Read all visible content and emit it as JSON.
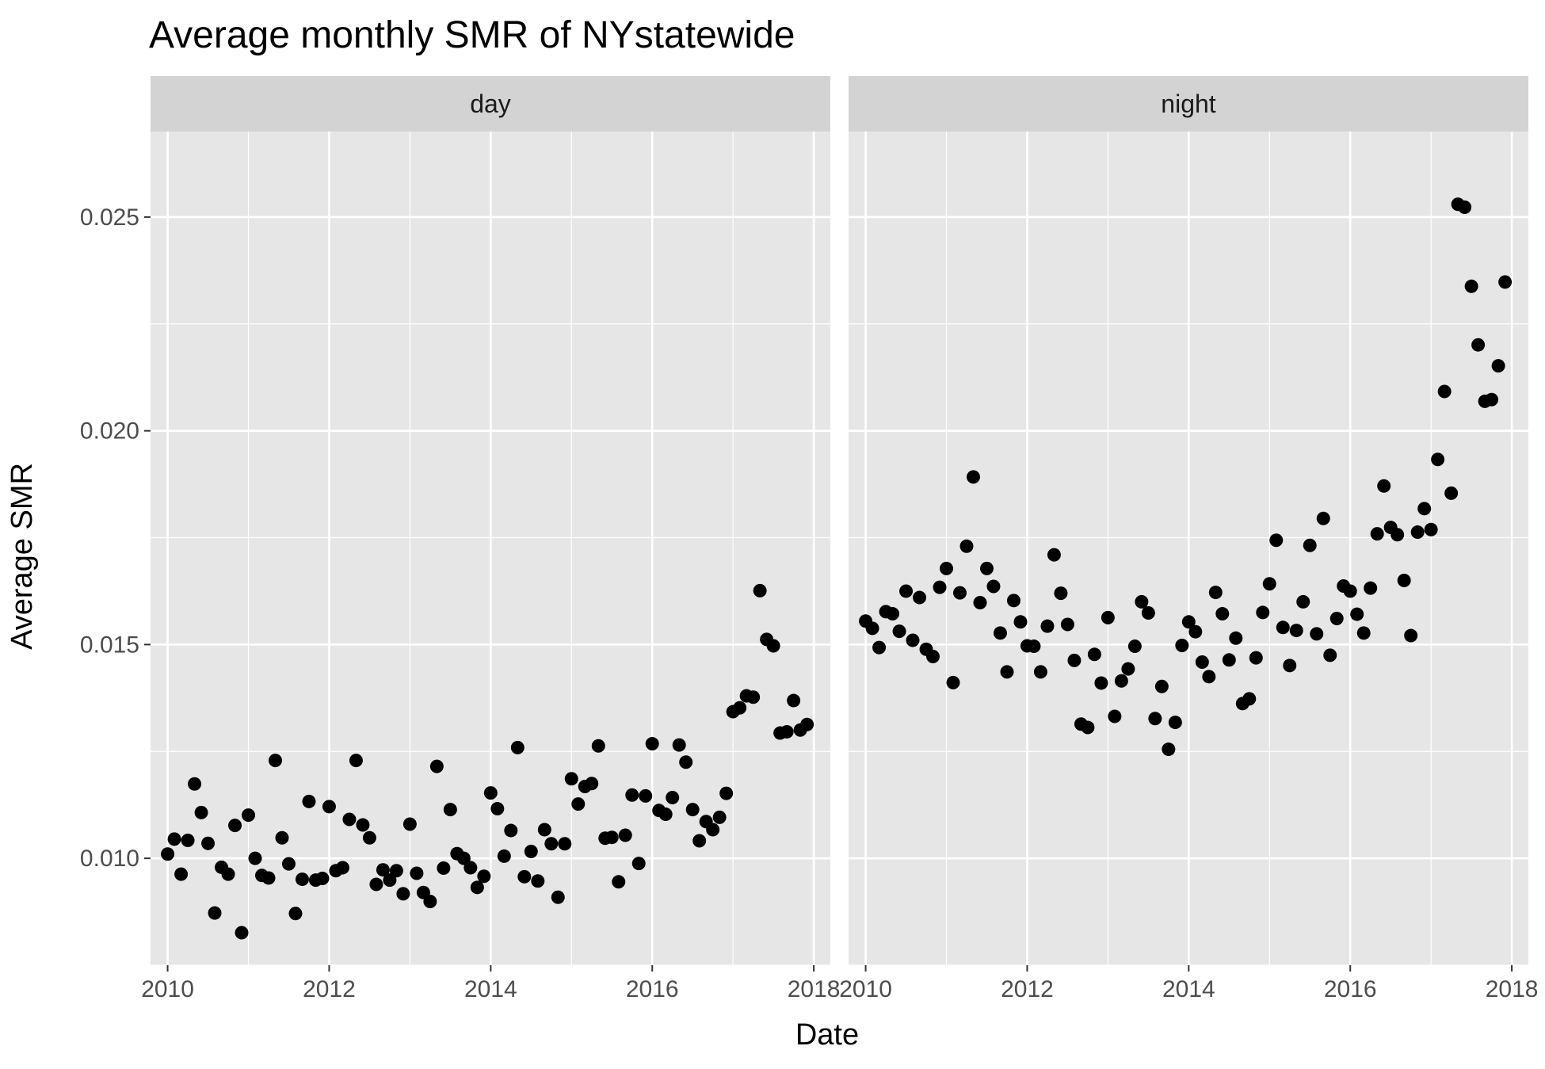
{
  "chart_data": {
    "type": "scatter",
    "title": "Average monthly SMR of NYstatewide",
    "xlabel": "Date",
    "ylabel": "Average SMR",
    "xlim": [
      "2009-10-15",
      "2018-03-15"
    ],
    "ylim": [
      0.0075,
      0.027
    ],
    "x_ticks": [
      "2010",
      "2012",
      "2014",
      "2016",
      "2018"
    ],
    "y_ticks": [
      "0.010",
      "0.015",
      "0.020",
      "0.025"
    ],
    "grid": true,
    "facet_by": "time of day",
    "panels": [
      {
        "label": "day",
        "x": [
          "2010-01",
          "2010-02",
          "2010-03",
          "2010-04",
          "2010-05",
          "2010-06",
          "2010-07",
          "2010-08",
          "2010-09",
          "2010-10",
          "2010-11",
          "2010-12",
          "2011-01",
          "2011-02",
          "2011-03",
          "2011-04",
          "2011-05",
          "2011-06",
          "2011-07",
          "2011-08",
          "2011-09",
          "2011-10",
          "2011-11",
          "2011-12",
          "2012-01",
          "2012-02",
          "2012-03",
          "2012-04",
          "2012-05",
          "2012-06",
          "2012-07",
          "2012-08",
          "2012-09",
          "2012-10",
          "2012-11",
          "2012-12",
          "2013-01",
          "2013-02",
          "2013-03",
          "2013-04",
          "2013-05",
          "2013-06",
          "2013-07",
          "2013-08",
          "2013-09",
          "2013-10",
          "2013-11",
          "2013-12",
          "2014-01",
          "2014-02",
          "2014-03",
          "2014-04",
          "2014-05",
          "2014-06",
          "2014-07",
          "2014-08",
          "2014-09",
          "2014-10",
          "2014-11",
          "2014-12",
          "2015-01",
          "2015-02",
          "2015-03",
          "2015-04",
          "2015-05",
          "2015-06",
          "2015-07",
          "2015-08",
          "2015-09",
          "2015-10",
          "2015-11",
          "2015-12",
          "2016-01",
          "2016-02",
          "2016-03",
          "2016-04",
          "2016-05",
          "2016-06",
          "2016-07",
          "2016-08",
          "2016-09",
          "2016-10",
          "2016-11",
          "2016-12",
          "2017-01",
          "2017-02",
          "2017-03",
          "2017-04",
          "2017-05",
          "2017-06",
          "2017-07",
          "2017-08",
          "2017-09",
          "2017-10",
          "2017-11",
          "2017-12"
        ],
        "y": [
          0.0101,
          0.01045,
          0.00963,
          0.01042,
          0.01174,
          0.01107,
          0.01035,
          0.00872,
          0.00979,
          0.00963,
          0.01077,
          0.00826,
          0.01101,
          0.01,
          0.0096,
          0.00954,
          0.01229,
          0.01048,
          0.00987,
          0.00871,
          0.00951,
          0.01133,
          0.00949,
          0.00953,
          0.01121,
          0.00971,
          0.00978,
          0.01091,
          0.01229,
          0.01078,
          0.01048,
          0.00939,
          0.00973,
          0.00949,
          0.00971,
          0.00917,
          0.0108,
          0.00965,
          0.0092,
          0.00899,
          0.01215,
          0.00977,
          0.01114,
          0.01011,
          0.01,
          0.00978,
          0.00932,
          0.00958,
          0.01153,
          0.01116,
          0.01005,
          0.01065,
          0.01259,
          0.00957,
          0.01016,
          0.00947,
          0.01067,
          0.01034,
          0.00909,
          0.01034,
          0.01186,
          0.01127,
          0.01168,
          0.01175,
          0.01263,
          0.01047,
          0.01049,
          0.00945,
          0.01054,
          0.01148,
          0.00988,
          0.01146,
          0.01268,
          0.01112,
          0.01103,
          0.01142,
          0.01265,
          0.01225,
          0.01114,
          0.01041,
          0.01086,
          0.01067,
          0.01096,
          0.01152,
          0.01343,
          0.01352,
          0.0138,
          0.01377,
          0.01626,
          0.01512,
          0.01497,
          0.01293,
          0.01296,
          0.01369,
          0.013,
          0.01313
        ]
      },
      {
        "label": "night",
        "x": [
          "2010-01",
          "2010-02",
          "2010-03",
          "2010-04",
          "2010-05",
          "2010-06",
          "2010-07",
          "2010-08",
          "2010-09",
          "2010-10",
          "2010-11",
          "2010-12",
          "2011-01",
          "2011-02",
          "2011-03",
          "2011-04",
          "2011-05",
          "2011-06",
          "2011-07",
          "2011-08",
          "2011-09",
          "2011-10",
          "2011-11",
          "2011-12",
          "2012-01",
          "2012-02",
          "2012-03",
          "2012-04",
          "2012-05",
          "2012-06",
          "2012-07",
          "2012-08",
          "2012-09",
          "2012-10",
          "2012-11",
          "2012-12",
          "2013-01",
          "2013-02",
          "2013-03",
          "2013-04",
          "2013-05",
          "2013-06",
          "2013-07",
          "2013-08",
          "2013-09",
          "2013-10",
          "2013-11",
          "2013-12",
          "2014-01",
          "2014-02",
          "2014-03",
          "2014-04",
          "2014-05",
          "2014-06",
          "2014-07",
          "2014-08",
          "2014-09",
          "2014-10",
          "2014-11",
          "2014-12",
          "2015-01",
          "2015-02",
          "2015-03",
          "2015-04",
          "2015-05",
          "2015-06",
          "2015-07",
          "2015-08",
          "2015-09",
          "2015-10",
          "2015-11",
          "2015-12",
          "2016-01",
          "2016-02",
          "2016-03",
          "2016-04",
          "2016-05",
          "2016-06",
          "2016-07",
          "2016-08",
          "2016-09",
          "2016-10",
          "2016-11",
          "2016-12",
          "2017-01",
          "2017-02",
          "2017-03",
          "2017-04",
          "2017-05",
          "2017-06",
          "2017-07",
          "2017-08",
          "2017-09",
          "2017-10",
          "2017-11",
          "2017-12"
        ],
        "y": [
          0.01555,
          0.01538,
          0.01493,
          0.01577,
          0.01572,
          0.01531,
          0.01625,
          0.0151,
          0.0161,
          0.01489,
          0.01472,
          0.01634,
          0.01678,
          0.01411,
          0.01621,
          0.0173,
          0.01892,
          0.01598,
          0.01678,
          0.01636,
          0.01527,
          0.01436,
          0.01603,
          0.01553,
          0.01497,
          0.01496,
          0.01436,
          0.01543,
          0.0171,
          0.0162,
          0.01547,
          0.01463,
          0.01314,
          0.01306,
          0.01477,
          0.0141,
          0.01563,
          0.01332,
          0.01415,
          0.01443,
          0.01496,
          0.016,
          0.01574,
          0.01327,
          0.01402,
          0.01255,
          0.01318,
          0.01498,
          0.01553,
          0.0153,
          0.01459,
          0.01425,
          0.01622,
          0.01572,
          0.01464,
          0.01515,
          0.01362,
          0.01373,
          0.01469,
          0.01575,
          0.01642,
          0.01744,
          0.0154,
          0.01451,
          0.01533,
          0.016,
          0.01732,
          0.01525,
          0.01795,
          0.01475,
          0.01561,
          0.01637,
          0.01625,
          0.01571,
          0.01527,
          0.01632,
          0.01759,
          0.01871,
          0.01774,
          0.01757,
          0.0165,
          0.01521,
          0.01763,
          0.01818,
          0.01769,
          0.01933,
          0.02092,
          0.01854,
          0.0253,
          0.02523,
          0.02338,
          0.02201,
          0.02069,
          0.02073,
          0.02152,
          0.02348
        ]
      }
    ],
    "point_color": "#000000",
    "panel_background": "#e6e6e6",
    "strip_background": "#d3d3d3",
    "gridline_color": "#ffffff"
  }
}
